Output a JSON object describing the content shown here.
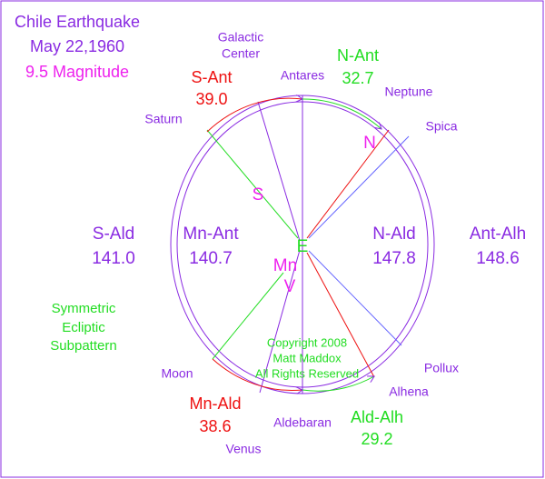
{
  "title": {
    "line1": "Chile Earthquake",
    "line2": "May 22,1960",
    "line3": "9.5 Magnitude"
  },
  "points": {
    "galactic_center": [
      "Galactic",
      "Center"
    ],
    "antares": "Antares",
    "neptune": "Neptune",
    "spica": "Spica",
    "saturn": "Saturn",
    "moon": "Moon",
    "pollux": "Pollux",
    "alhena": "Alhena",
    "aldebaran": "Aldebaran",
    "venus": "Venus"
  },
  "markers": {
    "s": "S",
    "n": "N",
    "e": "E",
    "mn": "Mn",
    "v": "V"
  },
  "arcs": {
    "s_ant": {
      "label": "S-Ant",
      "value": "39.0"
    },
    "n_ant": {
      "label": "N-Ant",
      "value": "32.7"
    },
    "mn_ald": {
      "label": "Mn-Ald",
      "value": "38.6"
    },
    "ald_alh": {
      "label": "Ald-Alh",
      "value": "29.2"
    }
  },
  "sectors": {
    "s_ald": {
      "label": "S-Ald",
      "value": "141.0"
    },
    "mn_ant": {
      "label": "Mn-Ant",
      "value": "140.7"
    },
    "n_ald": {
      "label": "N-Ald",
      "value": "147.8"
    },
    "ant_alh": {
      "label": "Ant-Alh",
      "value": "148.6"
    }
  },
  "note": [
    "Symmetric",
    "Ecliptic",
    "Subpattern"
  ],
  "copyright": [
    "Copyright 2008",
    "Matt Maddox",
    "All Rights Reserved"
  ]
}
